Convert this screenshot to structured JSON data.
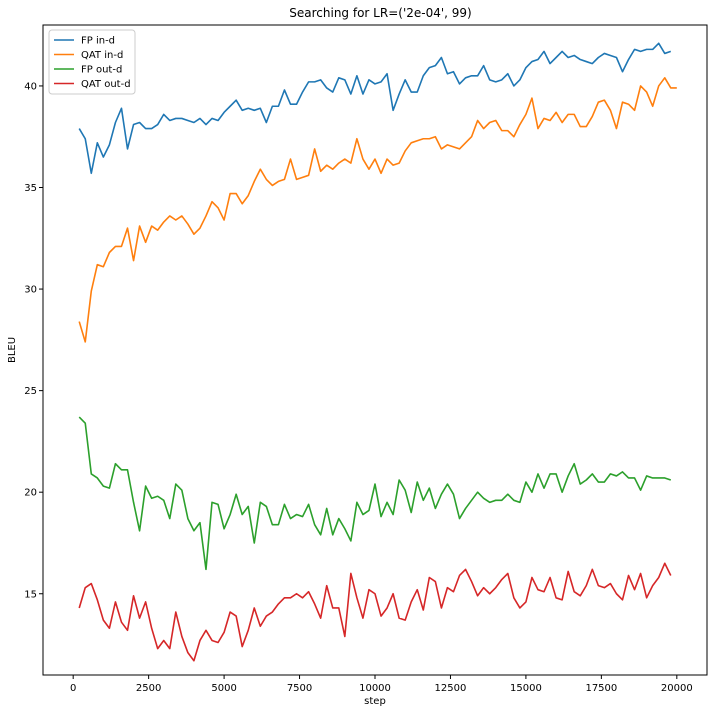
{
  "chart_data": {
    "type": "line",
    "title": "Searching for LR=('2e-04', 99)",
    "xlabel": "step",
    "ylabel": "BLEU",
    "xlim": [
      -1000,
      21000
    ],
    "ylim": [
      11,
      43
    ],
    "xticks": [
      0,
      2500,
      5000,
      7500,
      10000,
      12500,
      15000,
      17500,
      20000
    ],
    "yticks": [
      15,
      20,
      25,
      30,
      35,
      40
    ],
    "grid": false,
    "legend_position": "top-left",
    "x_start": 200,
    "x_step": 200,
    "series": [
      {
        "name": "FP in-d",
        "color": "#1f77b4",
        "values": [
          37.9,
          37.4,
          35.7,
          37.2,
          36.5,
          37.1,
          38.2,
          38.9,
          36.9,
          38.1,
          38.2,
          37.9,
          37.9,
          38.1,
          38.6,
          38.3,
          38.4,
          38.4,
          38.3,
          38.2,
          38.4,
          38.1,
          38.4,
          38.3,
          38.7,
          39.0,
          39.3,
          38.8,
          38.9,
          38.8,
          38.9,
          38.2,
          39.0,
          39.0,
          39.8,
          39.1,
          39.1,
          39.7,
          40.2,
          40.2,
          40.3,
          39.9,
          39.7,
          40.4,
          40.3,
          39.6,
          40.5,
          39.6,
          40.3,
          40.1,
          40.2,
          40.6,
          38.8,
          39.6,
          40.3,
          39.7,
          39.7,
          40.5,
          40.9,
          41.0,
          41.4,
          40.6,
          40.7,
          40.1,
          40.4,
          40.5,
          40.5,
          41.0,
          40.3,
          40.2,
          40.3,
          40.6,
          40.0,
          40.3,
          40.9,
          41.2,
          41.3,
          41.7,
          41.1,
          41.4,
          41.7,
          41.4,
          41.5,
          41.3,
          41.2,
          41.1,
          41.4,
          41.6,
          41.5,
          41.4,
          40.7,
          41.3,
          41.8,
          41.7,
          41.8,
          41.8,
          42.1,
          41.6,
          41.7
        ]
      },
      {
        "name": "QAT in-d",
        "color": "#ff7f0e",
        "values": [
          28.4,
          27.4,
          29.9,
          31.2,
          31.1,
          31.8,
          32.1,
          32.1,
          33.0,
          31.4,
          33.1,
          32.3,
          33.1,
          32.9,
          33.3,
          33.6,
          33.4,
          33.6,
          33.2,
          32.7,
          33.0,
          33.6,
          34.3,
          34.0,
          33.4,
          34.7,
          34.7,
          34.2,
          34.6,
          35.3,
          35.9,
          35.4,
          35.1,
          35.3,
          35.4,
          36.4,
          35.4,
          35.5,
          35.6,
          36.9,
          35.8,
          36.1,
          35.9,
          36.2,
          36.4,
          36.2,
          37.4,
          36.4,
          35.9,
          36.4,
          35.7,
          36.4,
          36.1,
          36.2,
          36.8,
          37.2,
          37.3,
          37.4,
          37.4,
          37.5,
          36.9,
          37.1,
          37.0,
          36.9,
          37.2,
          37.5,
          38.3,
          37.9,
          38.2,
          38.3,
          37.8,
          37.8,
          37.5,
          38.1,
          38.6,
          39.4,
          37.9,
          38.4,
          38.3,
          38.7,
          38.2,
          38.6,
          38.6,
          38.0,
          38.0,
          38.5,
          39.2,
          39.3,
          38.8,
          37.9,
          39.2,
          39.1,
          38.8,
          40.0,
          39.7,
          39.0,
          40.0,
          40.4,
          39.9,
          39.9
        ]
      },
      {
        "name": "FP out-d",
        "color": "#2ca02c",
        "values": [
          23.7,
          23.4,
          20.9,
          20.7,
          20.3,
          20.2,
          21.4,
          21.1,
          21.1,
          19.5,
          18.1,
          20.3,
          19.7,
          19.8,
          19.6,
          18.7,
          20.4,
          20.1,
          18.7,
          18.1,
          18.5,
          16.2,
          19.5,
          19.4,
          18.2,
          18.9,
          19.9,
          18.9,
          19.3,
          17.5,
          19.5,
          19.3,
          18.4,
          18.4,
          19.4,
          18.7,
          18.9,
          18.8,
          19.4,
          18.4,
          17.9,
          19.2,
          17.9,
          18.7,
          18.2,
          17.6,
          19.5,
          18.9,
          19.1,
          20.4,
          18.8,
          19.5,
          18.9,
          20.6,
          20.1,
          19.0,
          20.5,
          19.6,
          20.2,
          19.2,
          19.9,
          20.4,
          19.9,
          18.7,
          19.2,
          19.6,
          20.0,
          19.7,
          19.5,
          19.6,
          19.6,
          19.9,
          19.6,
          19.5,
          20.5,
          20.0,
          20.9,
          20.2,
          20.9,
          20.9,
          20.0,
          20.8,
          21.4,
          20.4,
          20.6,
          20.9,
          20.5,
          20.5,
          20.9,
          20.8,
          21.0,
          20.7,
          20.7,
          20.1,
          20.8,
          20.7,
          20.7,
          20.7,
          20.6
        ]
      },
      {
        "name": "QAT out-d",
        "color": "#d62728",
        "values": [
          14.3,
          15.3,
          15.5,
          14.7,
          13.7,
          13.3,
          14.6,
          13.6,
          13.2,
          14.9,
          13.8,
          14.6,
          13.3,
          12.3,
          12.7,
          12.3,
          14.1,
          12.9,
          12.1,
          11.7,
          12.7,
          13.2,
          12.7,
          12.6,
          13.1,
          14.1,
          13.9,
          12.4,
          13.2,
          14.3,
          13.4,
          13.9,
          14.1,
          14.5,
          14.8,
          14.8,
          15.0,
          14.8,
          15.1,
          14.5,
          13.8,
          15.4,
          14.3,
          14.3,
          12.9,
          16.0,
          14.8,
          13.8,
          15.2,
          15.0,
          13.9,
          14.3,
          15.0,
          13.8,
          13.7,
          14.6,
          15.2,
          14.2,
          15.8,
          15.6,
          14.3,
          15.3,
          15.1,
          15.9,
          16.2,
          15.6,
          14.9,
          15.3,
          15.0,
          15.3,
          15.7,
          16.0,
          14.8,
          14.3,
          14.6,
          15.8,
          15.2,
          15.1,
          15.8,
          14.8,
          14.7,
          16.1,
          15.1,
          14.9,
          15.4,
          16.2,
          15.4,
          15.3,
          15.5,
          15.0,
          14.7,
          15.9,
          15.2,
          16.0,
          14.8,
          15.4,
          15.8,
          16.5,
          15.9
        ]
      }
    ]
  }
}
